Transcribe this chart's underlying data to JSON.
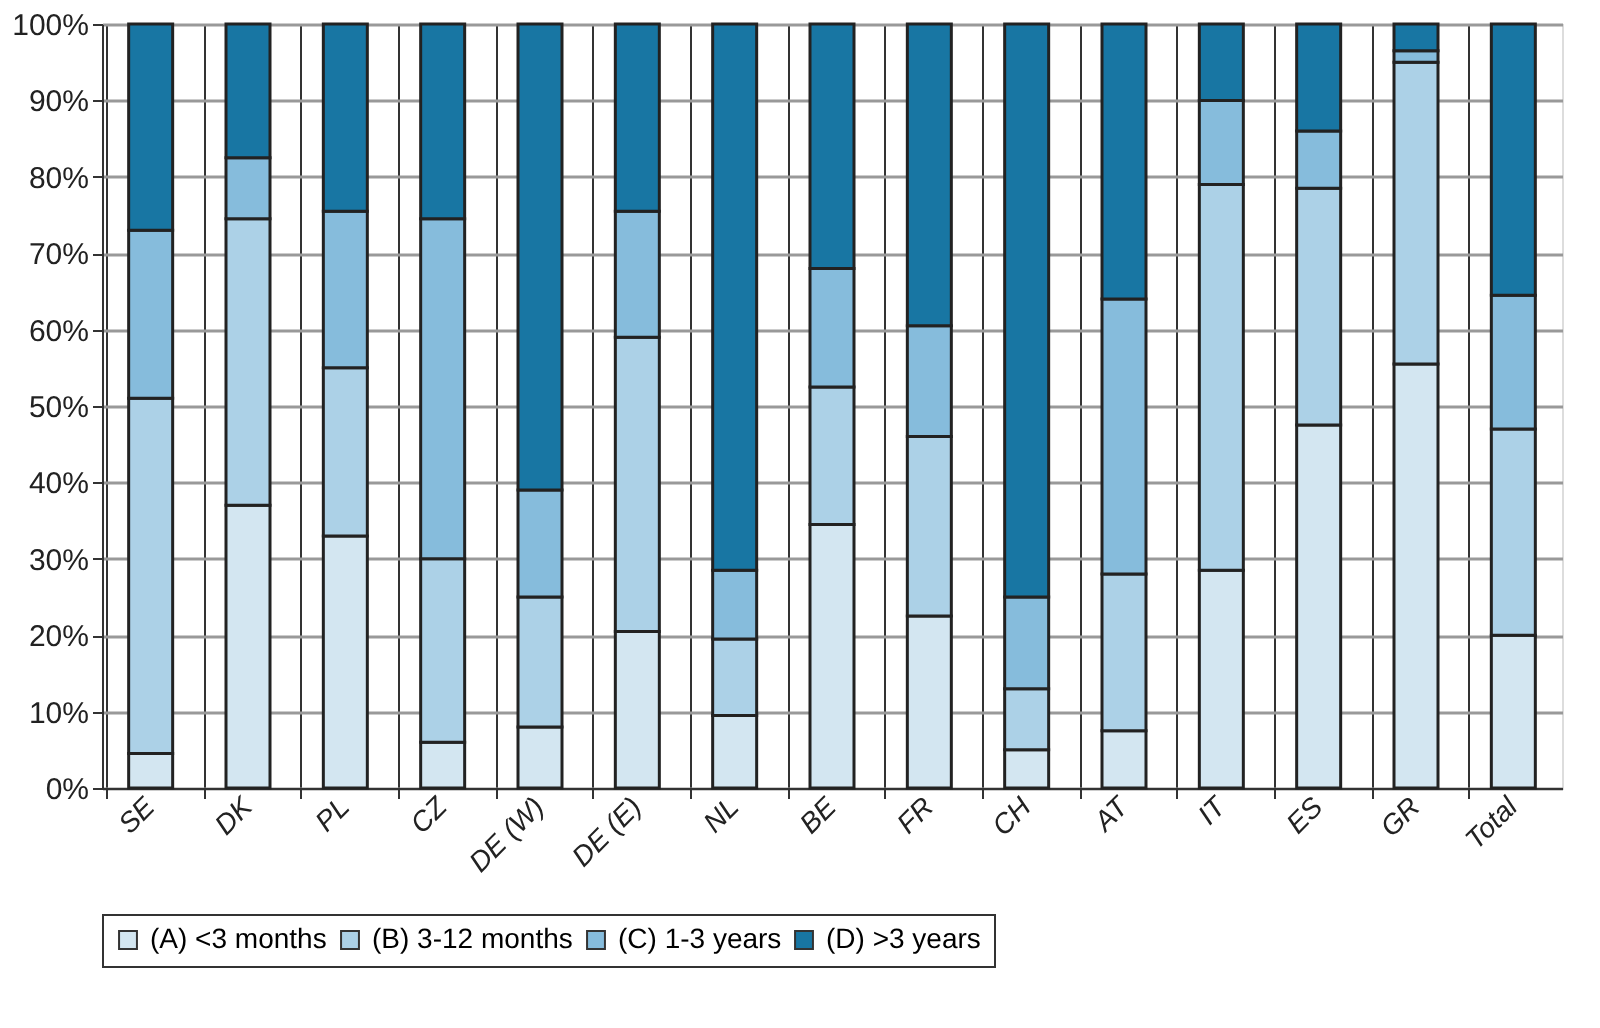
{
  "chart_data": {
    "type": "bar",
    "stacked": true,
    "categories": [
      "SE",
      "DK",
      "PL",
      "CZ",
      "DE (W)",
      "DE (E)",
      "NL",
      "BE",
      "FR",
      "CH",
      "AT",
      "IT",
      "ES",
      "GR",
      "Total"
    ],
    "series": [
      {
        "name": "(A) <3 months",
        "color": "#d3e6f1",
        "values": [
          4.5,
          37,
          33,
          6,
          8,
          20.5,
          9.5,
          34.5,
          22.5,
          5,
          7.5,
          28.5,
          47.5,
          55.5,
          20
        ]
      },
      {
        "name": "(B) 3-12 months",
        "color": "#acd1e7",
        "values": [
          46.5,
          37.5,
          22,
          24,
          17,
          38.5,
          10,
          18,
          23.5,
          8,
          20.5,
          50.5,
          31,
          39.5,
          27
        ]
      },
      {
        "name": "(C) 1-3 years",
        "color": "#86bcdc",
        "values": [
          22,
          8,
          20.5,
          44.5,
          14,
          16.5,
          9,
          15.5,
          14.5,
          12,
          36,
          11,
          7.5,
          1.5,
          17.5
        ]
      },
      {
        "name": "(D) >3 years",
        "color": "#1876a3",
        "values": [
          27,
          17.5,
          24.5,
          25.5,
          61,
          24.5,
          71.5,
          32,
          39.5,
          75,
          36,
          10,
          14,
          3.5,
          35.5
        ]
      }
    ],
    "ylim": [
      0,
      100
    ],
    "yticks": [
      {
        "value": 0,
        "label": "0%"
      },
      {
        "value": 10,
        "label": "10%"
      },
      {
        "value": 20,
        "label": "20%"
      },
      {
        "value": 30,
        "label": "30%"
      },
      {
        "value": 40,
        "label": "40%"
      },
      {
        "value": 50,
        "label": "50%"
      },
      {
        "value": 60,
        "label": "60%"
      },
      {
        "value": 70,
        "label": "70%"
      },
      {
        "value": 80,
        "label": "80%"
      },
      {
        "value": 90,
        "label": "90%"
      },
      {
        "value": 100,
        "label": "100%"
      }
    ],
    "grid": true,
    "legend": "bottom"
  }
}
